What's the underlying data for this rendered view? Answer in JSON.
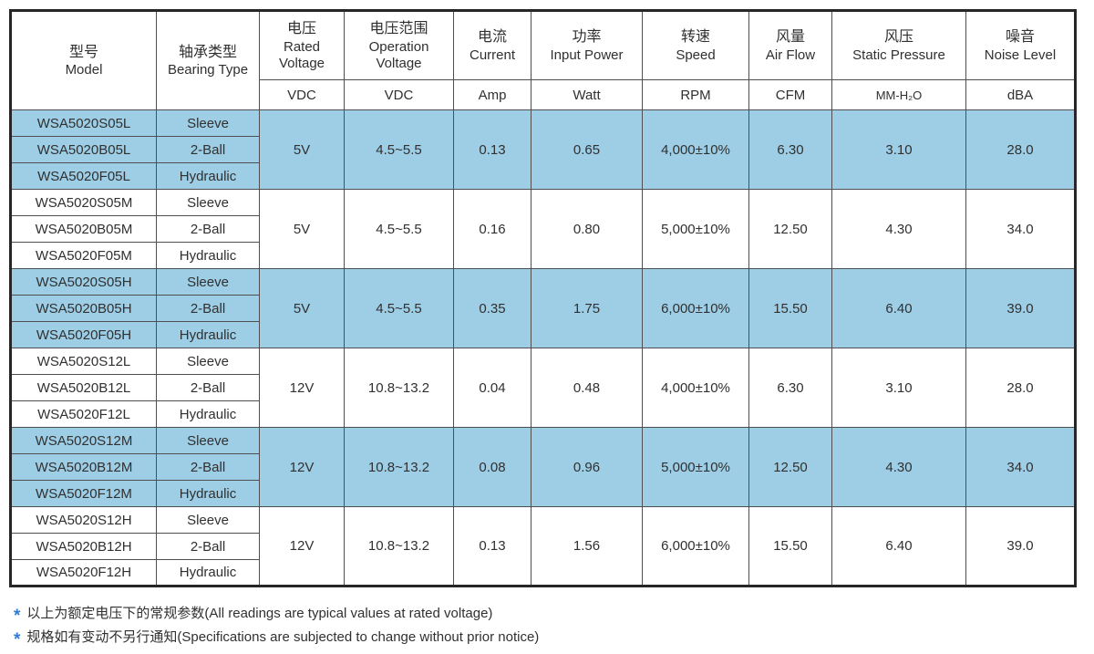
{
  "colors": {
    "row_highlight": "#9dcee6",
    "footnote_marker": "#2e7cd6"
  },
  "table": {
    "columns": [
      {
        "zh": "型号",
        "en": "Model",
        "unit": null
      },
      {
        "zh": "轴承类型",
        "en": "Bearing Type",
        "unit": null
      },
      {
        "zh": "电压",
        "en": "Rated Voltage",
        "unit": "VDC"
      },
      {
        "zh": "电压范围",
        "en": "Operation Voltage",
        "unit": "VDC"
      },
      {
        "zh": "电流",
        "en": "Current",
        "unit": "Amp"
      },
      {
        "zh": "功率",
        "en": "Input Power",
        "unit": "Watt"
      },
      {
        "zh": "转速",
        "en": "Speed",
        "unit": "RPM"
      },
      {
        "zh": "风量",
        "en": "Air Flow",
        "unit": "CFM"
      },
      {
        "zh": "风压",
        "en": "Static Pressure",
        "unit": "MM-H₂O"
      },
      {
        "zh": "噪音",
        "en": "Noise Level",
        "unit": "dBA"
      }
    ],
    "groups": [
      {
        "highlight": true,
        "rows": [
          {
            "model": "WSA5020S05L",
            "bearing": "Sleeve"
          },
          {
            "model": "WSA5020B05L",
            "bearing": "2-Ball"
          },
          {
            "model": "WSA5020F05L",
            "bearing": "Hydraulic"
          }
        ],
        "rated_voltage": "5V",
        "operation_voltage": "4.5~5.5",
        "current": "0.13",
        "input_power": "0.65",
        "speed": "4,000±10%",
        "air_flow": "6.30",
        "static_pressure": "3.10",
        "noise_level": "28.0"
      },
      {
        "highlight": false,
        "rows": [
          {
            "model": "WSA5020S05M",
            "bearing": "Sleeve"
          },
          {
            "model": "WSA5020B05M",
            "bearing": "2-Ball"
          },
          {
            "model": "WSA5020F05M",
            "bearing": "Hydraulic"
          }
        ],
        "rated_voltage": "5V",
        "operation_voltage": "4.5~5.5",
        "current": "0.16",
        "input_power": "0.80",
        "speed": "5,000±10%",
        "air_flow": "12.50",
        "static_pressure": "4.30",
        "noise_level": "34.0"
      },
      {
        "highlight": true,
        "rows": [
          {
            "model": "WSA5020S05H",
            "bearing": "Sleeve"
          },
          {
            "model": "WSA5020B05H",
            "bearing": "2-Ball"
          },
          {
            "model": "WSA5020F05H",
            "bearing": "Hydraulic"
          }
        ],
        "rated_voltage": "5V",
        "operation_voltage": "4.5~5.5",
        "current": "0.35",
        "input_power": "1.75",
        "speed": "6,000±10%",
        "air_flow": "15.50",
        "static_pressure": "6.40",
        "noise_level": "39.0"
      },
      {
        "highlight": false,
        "rows": [
          {
            "model": "WSA5020S12L",
            "bearing": "Sleeve"
          },
          {
            "model": "WSA5020B12L",
            "bearing": "2-Ball"
          },
          {
            "model": "WSA5020F12L",
            "bearing": "Hydraulic"
          }
        ],
        "rated_voltage": "12V",
        "operation_voltage": "10.8~13.2",
        "current": "0.04",
        "input_power": "0.48",
        "speed": "4,000±10%",
        "air_flow": "6.30",
        "static_pressure": "3.10",
        "noise_level": "28.0"
      },
      {
        "highlight": true,
        "rows": [
          {
            "model": "WSA5020S12M",
            "bearing": "Sleeve"
          },
          {
            "model": "WSA5020B12M",
            "bearing": "2-Ball"
          },
          {
            "model": "WSA5020F12M",
            "bearing": "Hydraulic"
          }
        ],
        "rated_voltage": "12V",
        "operation_voltage": "10.8~13.2",
        "current": "0.08",
        "input_power": "0.96",
        "speed": "5,000±10%",
        "air_flow": "12.50",
        "static_pressure": "4.30",
        "noise_level": "34.0"
      },
      {
        "highlight": false,
        "rows": [
          {
            "model": "WSA5020S12H",
            "bearing": "Sleeve"
          },
          {
            "model": "WSA5020B12H",
            "bearing": "2-Ball"
          },
          {
            "model": "WSA5020F12H",
            "bearing": "Hydraulic"
          }
        ],
        "rated_voltage": "12V",
        "operation_voltage": "10.8~13.2",
        "current": "0.13",
        "input_power": "1.56",
        "speed": "6,000±10%",
        "air_flow": "15.50",
        "static_pressure": "6.40",
        "noise_level": "39.0"
      }
    ]
  },
  "footnotes": [
    {
      "marker": "*",
      "text": "以上为额定电压下的常规参数(All readings are typical values at rated voltage)"
    },
    {
      "marker": "*",
      "text": "规格如有变动不另行通知(Specifications are subjected to change without prior notice)"
    }
  ]
}
